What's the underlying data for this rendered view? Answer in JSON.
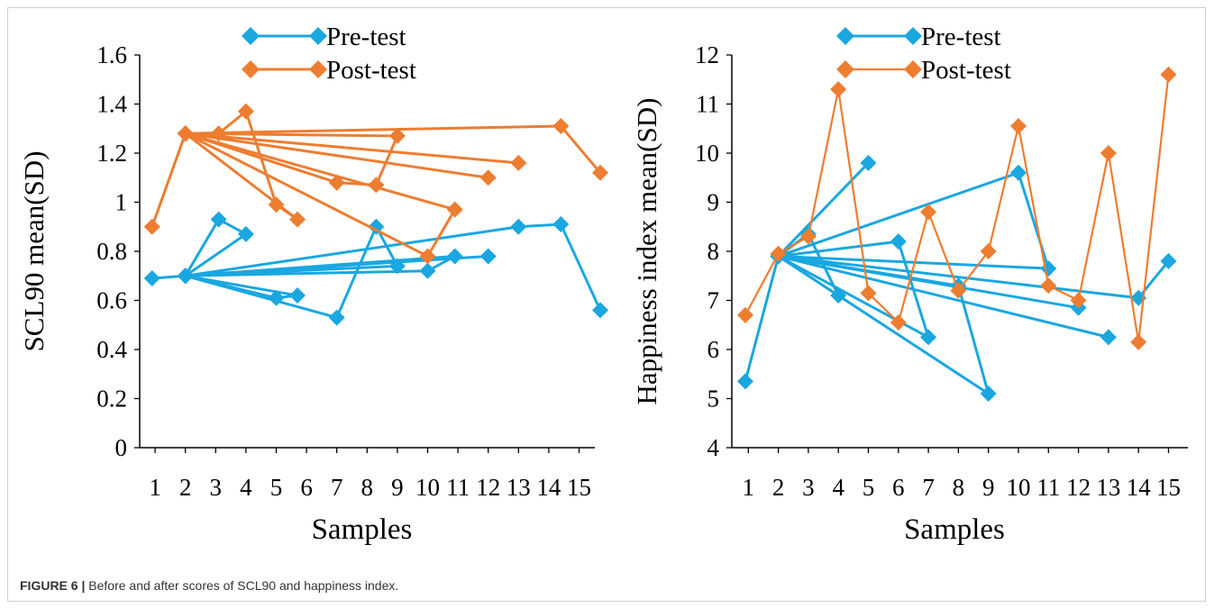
{
  "caption": {
    "label": "FIGURE 6 |",
    "text": "Before and after scores of SCL90 and happiness index."
  },
  "colors": {
    "pre": "#1aa7e0",
    "post": "#ed7d31",
    "axis": "#000000"
  },
  "chart_data": [
    {
      "type": "line",
      "xlabel": "Samples",
      "ylabel": "SCL90 mean(SD)",
      "categories": [
        "1",
        "2",
        "3",
        "4",
        "5",
        "6",
        "7",
        "8",
        "9",
        "10",
        "11",
        "12",
        "13",
        "14",
        "15"
      ],
      "ylim": [
        0,
        1.6
      ],
      "yticks": [
        "0",
        "0.2",
        "0.4",
        "0.6",
        "0.8",
        "1",
        "1.2",
        "1.4",
        "1.6"
      ],
      "legend_position": "top-center",
      "series": [
        {
          "name": "Pre-test",
          "color": "#1aa7e0",
          "points": [
            [
              0.9,
              0.69
            ],
            [
              2,
              0.7
            ],
            [
              3.1,
              0.93
            ],
            [
              4,
              0.87
            ],
            [
              2,
              0.7
            ],
            [
              5,
              0.61
            ],
            [
              5.7,
              0.62
            ],
            [
              2,
              0.7
            ],
            [
              7,
              0.53
            ],
            [
              8.3,
              0.9
            ],
            [
              9,
              0.74
            ],
            [
              2,
              0.7
            ],
            [
              10,
              0.72
            ],
            [
              10.9,
              0.78
            ],
            [
              2,
              0.7
            ],
            [
              12,
              0.78
            ],
            [
              2,
              0.7
            ],
            [
              13,
              0.9
            ],
            [
              14.4,
              0.91
            ],
            [
              15.7,
              0.56
            ]
          ]
        },
        {
          "name": "Post-test",
          "color": "#ed7d31",
          "points": [
            [
              0.9,
              0.9
            ],
            [
              2,
              1.28
            ],
            [
              3.1,
              1.28
            ],
            [
              4,
              1.37
            ],
            [
              5,
              0.99
            ],
            [
              5.7,
              0.93
            ],
            [
              2,
              1.28
            ],
            [
              7,
              1.08
            ],
            [
              8.3,
              1.07
            ],
            [
              9,
              1.27
            ],
            [
              2,
              1.28
            ],
            [
              10,
              0.78
            ],
            [
              10.9,
              0.97
            ],
            [
              2,
              1.28
            ],
            [
              12,
              1.1
            ],
            [
              2,
              1.28
            ],
            [
              13,
              1.16
            ],
            [
              2,
              1.28
            ],
            [
              14.4,
              1.31
            ],
            [
              15.7,
              1.12
            ]
          ]
        }
      ]
    },
    {
      "type": "line",
      "xlabel": "Samples",
      "ylabel": "Happiness index mean(SD)",
      "categories": [
        "1",
        "2",
        "3",
        "4",
        "5",
        "6",
        "7",
        "8",
        "9",
        "10",
        "11",
        "12",
        "13",
        "14",
        "15"
      ],
      "ylim": [
        4,
        12
      ],
      "yticks": [
        "4",
        "5",
        "6",
        "7",
        "8",
        "9",
        "10",
        "11",
        "12"
      ],
      "legend_position": "top-center",
      "series": [
        {
          "name": "Pre-test",
          "color": "#1aa7e0",
          "points": [
            [
              0.9,
              5.35
            ],
            [
              2,
              7.9
            ],
            [
              3,
              8.35
            ],
            [
              4,
              7.1
            ],
            [
              2,
              7.9
            ],
            [
              5,
              9.8
            ],
            [
              2,
              7.9
            ],
            [
              6,
              8.2
            ],
            [
              7,
              6.25
            ],
            [
              2,
              7.9
            ],
            [
              8,
              7.3
            ],
            [
              9,
              5.1
            ],
            [
              2,
              7.9
            ],
            [
              10,
              9.6
            ],
            [
              11,
              7.65
            ],
            [
              2,
              7.9
            ],
            [
              12,
              6.85
            ],
            [
              2,
              7.9
            ],
            [
              13,
              6.25
            ],
            [
              2,
              7.9
            ],
            [
              14,
              7.05
            ],
            [
              15,
              7.8
            ]
          ]
        },
        {
          "name": "Post-test",
          "color": "#ed7d31",
          "points": [
            [
              0.9,
              6.7
            ],
            [
              2,
              7.95
            ],
            [
              3,
              8.3
            ],
            [
              4,
              11.3
            ],
            [
              5,
              7.15
            ],
            [
              6,
              6.55
            ],
            [
              7,
              8.8
            ],
            [
              8,
              7.2
            ],
            [
              9,
              8.0
            ],
            [
              10,
              10.55
            ],
            [
              11,
              7.3
            ],
            [
              12,
              7.0
            ],
            [
              13,
              10.0
            ],
            [
              14,
              6.15
            ],
            [
              15,
              11.6
            ]
          ]
        }
      ]
    }
  ]
}
